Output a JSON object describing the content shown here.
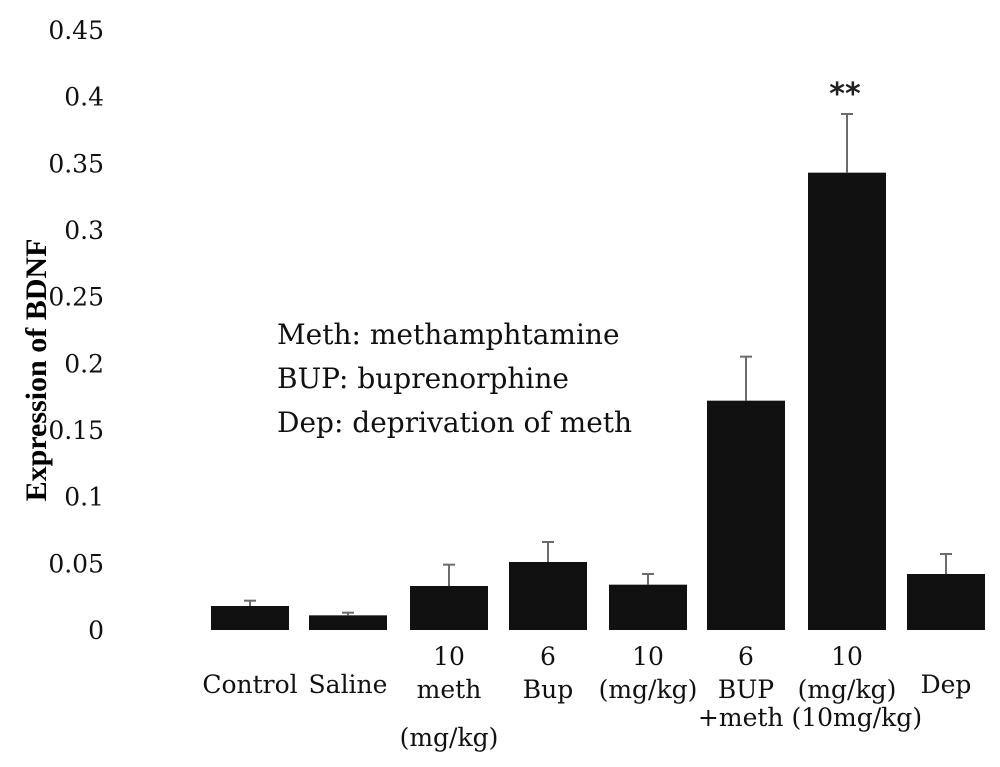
{
  "chart_data": {
    "type": "bar",
    "ylabel": "Expression of BDNF",
    "ylim": [
      0,
      0.45
    ],
    "yticks": [
      "0",
      "0.05",
      "0.1",
      "0.15",
      "0.2",
      "0.25",
      "0.3",
      "0.35",
      "0.4",
      "0.45"
    ],
    "grid": false,
    "bar_color": "#111111",
    "error_color": "#6b6b6b",
    "categories": [
      {
        "lines": [
          "Control"
        ]
      },
      {
        "lines": [
          "Saline"
        ]
      },
      {
        "lines": [
          "10",
          "meth",
          "(mg/kg)"
        ]
      },
      {
        "lines": [
          "6",
          "Bup"
        ]
      },
      {
        "lines": [
          "10",
          "(mg/kg)"
        ]
      },
      {
        "lines": [
          "6",
          "BUP"
        ]
      },
      {
        "lines": [
          "10",
          "(mg/kg)"
        ]
      },
      {
        "lines": [
          "Dep"
        ]
      }
    ],
    "group_label": "+meth (10mg/kg)",
    "values": [
      0.018,
      0.011,
      0.033,
      0.051,
      0.034,
      0.172,
      0.343,
      0.042
    ],
    "errors": [
      0.004,
      0.002,
      0.016,
      0.015,
      0.008,
      0.033,
      0.044,
      0.015
    ],
    "annotations": [
      {
        "text": "**",
        "category_index": 6
      }
    ],
    "notes": [
      "Meth: methamphtamine",
      "BUP: buprenorphine",
      "Dep: deprivation of meth"
    ]
  }
}
